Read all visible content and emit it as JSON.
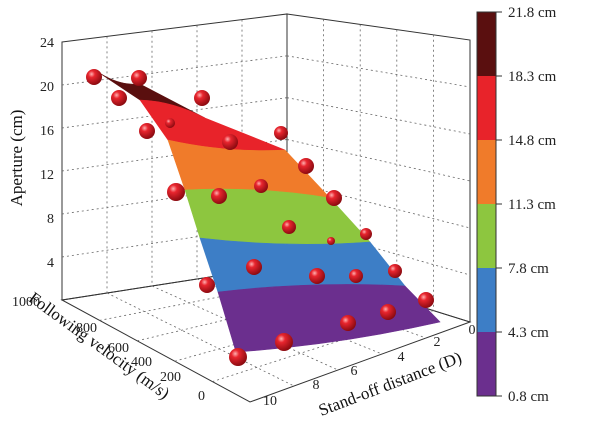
{
  "chart_data": {
    "type": "surface3d",
    "title": "",
    "axes": {
      "z": {
        "label": "Aperture (cm)",
        "ticks": [
          "4",
          "8",
          "12",
          "16",
          "20",
          "24"
        ]
      },
      "velocity": {
        "label": "Following velocity (m/s)",
        "ticks": [
          "0",
          "200",
          "400",
          "600",
          "800",
          "1000"
        ]
      },
      "distance": {
        "label": "Stand-off distance (D)",
        "ticks": [
          "0",
          "2",
          "4",
          "6",
          "8",
          "10"
        ]
      }
    },
    "colorbar": {
      "labels": [
        "21.8 cm",
        "18.3 cm",
        "14.8 cm",
        "11.3 cm",
        "7.8 cm",
        "4.3 cm",
        "0.8 cm"
      ],
      "bands": [
        {
          "from": 18.3,
          "to": 21.8,
          "color": "#5a0f0f"
        },
        {
          "from": 14.8,
          "to": 18.3,
          "color": "#e8232a"
        },
        {
          "from": 11.3,
          "to": 14.8,
          "color": "#f07b2a"
        },
        {
          "from": 7.8,
          "to": 11.3,
          "color": "#8dc63f"
        },
        {
          "from": 4.3,
          "to": 7.8,
          "color": "#3d7ec6"
        },
        {
          "from": 0.8,
          "to": 4.3,
          "color": "#6b2f8e"
        }
      ]
    },
    "surface_bands": [
      {
        "from": 0.8,
        "to": 4.3,
        "color": "#6b2f8e"
      },
      {
        "from": 4.3,
        "to": 7.8,
        "color": "#3d7ec6"
      },
      {
        "from": 7.8,
        "to": 11.3,
        "color": "#8dc63f"
      },
      {
        "from": 11.3,
        "to": 14.8,
        "color": "#f07b2a"
      },
      {
        "from": 14.8,
        "to": 18.3,
        "color": "#e8232a"
      },
      {
        "from": 18.3,
        "to": 21.8,
        "color": "#5a0f0f"
      }
    ],
    "sphere_color": "#d8202a"
  }
}
